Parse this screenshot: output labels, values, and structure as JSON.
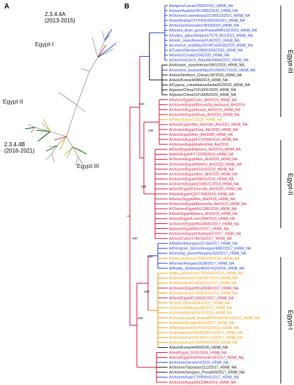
{
  "panels": {
    "a": "A",
    "b": "B"
  },
  "panel_a": {
    "clade_top": {
      "line1": "2.3.4.4A",
      "line2": "(2013-2015)"
    },
    "clade_bottom": {
      "line1": "2.3.4.4B",
      "line2": "(2016-2021)"
    },
    "groups": [
      "Egypt-I",
      "Egypt-II",
      "Egypt-III"
    ]
  },
  "panel_b": {
    "clade_labels": [
      "Egypt-III",
      "Egypt-II",
      "Egypt-I"
    ],
    "bootstrap": [
      "100",
      "100",
      "100",
      "100",
      "100",
      "100",
      "100"
    ],
    "colors": {
      "blue": "#1f3fd6",
      "red": "#d9143a",
      "orange": "#f29a05",
      "black": "#111111"
    },
    "taxa": [
      {
        "t": "A/wigeon/Latvia/23903/2021_H5N8_NA",
        "c": "blue"
      },
      {
        "t": "A/swan/Austria/VIR10852/2021_H5N8_NA",
        "c": "blue"
      },
      {
        "t": "A/chicken/Luxembourg/21166513/2021_H5N8_NA",
        "c": "blue"
      },
      {
        "t": "A/owl/Austria/21TVIR1643310/2021_H5N8_NA",
        "c": "blue"
      },
      {
        "t": "A/chicken/Denmark/14819/2020_H5N8_NA",
        "c": "blue"
      },
      {
        "t": "A/tundra_bean_goose/Poland/MR132/2020_H5N8_NA",
        "c": "blue"
      },
      {
        "t": "A/Gallus_gallus/Belgium/7578_001/2021_H5N8_NA",
        "c": "blue"
      },
      {
        "t": "A/mute_swan/Norway/FU4/2021_H5N8_NA",
        "c": "blue"
      },
      {
        "t": "A/common_teal/Italy/20VIR14391B/2020_H5N8_NA",
        "c": "blue"
      },
      {
        "t": "A/Turkey/Sweden/20KK6303/2020_H5N8_NA",
        "c": "blue"
      },
      {
        "t": "A/turkey/Croatia/104/2020_H5N8_NA",
        "c": "blue"
      },
      {
        "t": "A/chicken/Czech_Republic/6684/2021_H5N8_NA",
        "c": "blue"
      },
      {
        "t": "A/whooper_swan/Henan/SM1/2020_H5N8_NA",
        "c": "black"
      },
      {
        "t": "A/common_buzzard/Italy/21VIR4317/2020_H5N8_NA",
        "c": "blue"
      },
      {
        "t": "A/duck/Northern_China/LSP/2020_H5N8_NA",
        "c": "black"
      },
      {
        "t": "A/duck/Korea/H088/2014_H5N8_NA",
        "c": "black"
      },
      {
        "t": "A/Cygnus_columbianus/Hubei/52/2020_H5N8_NA",
        "c": "black"
      },
      {
        "t": "A/goose/China/21FU001/2020_H5N8_NA",
        "c": "black"
      },
      {
        "t": "A/goose/China/21FU005/2020_H5N8_NA",
        "c": "black"
      },
      {
        "t": "A/turkey/Egypt/Cairo_AH/2019_H5N8_NA",
        "c": "red"
      },
      {
        "t": "A/chicken/Egypt/Elmonufia_backyard_AH/2019",
        "c": "red"
      },
      {
        "t": "A/chicken/Egypt/Assuit_AH/2019_H5N8_NA",
        "c": "red"
      },
      {
        "t": "A/chicken/Egypt/sharq_AH/2020_H5N8_NA",
        "c": "red"
      },
      {
        "t": "A/Pekin/Egypt/1/2020_H5N8_NA",
        "c": "orange"
      },
      {
        "t": "A/duck/Egypt/Alex_Breeder_AH/2021_H5N8_NA",
        "c": "red"
      },
      {
        "t": "A/chicken/Egypt/Giza_AH/2020_H5N8_NA",
        "c": "red"
      },
      {
        "t": "A/duck/Egypt/Alex_AH/2020_H5N8_NA",
        "c": "red"
      },
      {
        "t": "A/chicken/Egypt/F17230A/2019_H5N8_NA",
        "c": "red"
      },
      {
        "t": "A/chicken/Egypt/kafersheik_AH/2019",
        "c": "red"
      },
      {
        "t": "A/Duck/Egypt/Elbehera_AH/2019_H5N8_NA",
        "c": "red"
      },
      {
        "t": "A/duck/Egypt/F17225A/2019_H5N8_NA",
        "c": "red"
      },
      {
        "t": "A/chicken/Egypt/Alex_AH/2020_H5N8_NA",
        "c": "red"
      },
      {
        "t": "A/chicken/Egypt/behera_AH/2020_H5N8_NA",
        "c": "red"
      },
      {
        "t": "A/chicken/Egypt/A1410/2018_H5N8_NA",
        "c": "red"
      },
      {
        "t": "A/chicken/Egypt/Alex_AH/2020_H5N8_NA",
        "c": "red"
      },
      {
        "t": "A/chicken/Egypt/SMG5/2019_H5N8_NA",
        "c": "red"
      },
      {
        "t": "A/chicken/Egypt/Q16807C/2018_H5N8_NA",
        "c": "red"
      },
      {
        "t": "A/duck/Egypt/Elmonufia_AH/2020_H5N8_NA",
        "c": "red"
      },
      {
        "t": "A/duck/Egypt/Q16716A/2018_H5N8_NA",
        "c": "red"
      },
      {
        "t": "A/turkey/Egypt/Alex_AH/2019_H5N8_NA",
        "c": "red"
      },
      {
        "t": "A/chicken/Egypt/Elmonufia_AH/2019_H5N8_NA",
        "c": "red"
      },
      {
        "t": "A/Chicken/Egypt/A12286/2018_H5N8_NA",
        "c": "red"
      },
      {
        "t": "A/duck/Egypt/Behera_AH/2019_H5N8_NA",
        "c": "red"
      },
      {
        "t": "A/duck/Egypt/Luxor/294/2019_H5N8_NA",
        "c": "red"
      },
      {
        "t": "A/chicken/Egypt/M14083D/2017_H5N8_NA",
        "c": "red"
      },
      {
        "t": "A/goose/Egypt/MG2/2017_H5N8_NA",
        "c": "red"
      },
      {
        "t": "A/chicken/Egypt/Gharbiya/1/2017_H5N8_NA",
        "c": "red"
      },
      {
        "t": "A/Duck/Cairo/1785CA/2017_H5N8_NA",
        "c": "red"
      },
      {
        "t": "A/Mallard/Hungary/1574a/2017_H5N8_NA",
        "c": "blue"
      },
      {
        "t": "A/Peregrine_falcon/Hungary/4882/2017_H5N8_NA",
        "c": "blue"
      },
      {
        "t": "A/Greylag_goose/Hungary/320/2017_H5N8_NA",
        "c": "blue"
      },
      {
        "t": "A/wild_bird/Iran/17RS6404/2016_H5N8_NA",
        "c": "orange"
      },
      {
        "t": "A/Goose/Hungary/1038/2017_H5N8_NA",
        "c": "blue"
      },
      {
        "t": "A/Ruddy_Shelduck/AN/21412/2016_H5N8_NA",
        "c": "blue"
      },
      {
        "t": "A/little_grebe/Iran/17RS6540/2016_H5N8_NA",
        "c": "orange"
      },
      {
        "t": "A/chicken/Iran/17RS6457/2017_H5N8_NA",
        "c": "orange"
      },
      {
        "t": "A/chicken/Iran/19VIR202/2017_H5N8_NA",
        "c": "orange"
      },
      {
        "t": "A/chicken/Egypt/N14200B/2017_H5N8_NA",
        "c": "red"
      },
      {
        "t": "A/chicken/Iran/17RS6415/2017_H5N8_NA",
        "c": "orange"
      },
      {
        "t": "A/duck/Egypt/F13663C/2017_H5N8_NA",
        "c": "red"
      },
      {
        "t": "A/chicken/Riyadh/A2/2017_H5N8_NA",
        "c": "orange"
      },
      {
        "t": "A/chicken/AlAhsaa/A8/2017_H5N8_NA",
        "c": "orange"
      },
      {
        "t": "A/chicken/Riyadh/A15/2018_H5N8_NA",
        "c": "orange"
      },
      {
        "t": "A/chicken/Saudi_Arabia/KFU/HKU3616/2017_H5N8_NA",
        "c": "orange"
      },
      {
        "t": "A/chicken/Riyadh/AF19/2017_H5N8_NA",
        "c": "orange"
      },
      {
        "t": "A/flamingo/Iran/17RS6412/2016_H5N8_NA",
        "c": "orange"
      },
      {
        "t": "A/chicken/Iran/18VIR200714/2017_H5N8_NA",
        "c": "orange"
      },
      {
        "t": "A/chicken/Iran/19VIR201715/2017_H5N8_NA",
        "c": "orange"
      },
      {
        "t": "A/chicken/Iran/17RS6405/2016_H5N8_NA",
        "c": "orange"
      },
      {
        "t": "A/duck/Korea/H499/2020_H5N8_NA",
        "c": "black"
      },
      {
        "t": "A/teal/Egypt_923C/2016_H5N8_NA",
        "c": "red"
      },
      {
        "t": "A/duck/Egypt/KafrElsheikh1B/2017_H5N8_NA",
        "c": "red"
      },
      {
        "t": "A/chicken/Ukraine/3/2016_H5N8_NA",
        "c": "blue"
      },
      {
        "t": "A/chicken/Tatarstan/1112/2017_H5N8_NA",
        "c": "black"
      },
      {
        "t": "A/chicken/Sergiyev_Posad/39/2017_H5N8_NA",
        "c": "black"
      },
      {
        "t": "A/chicken/Italy/17VIR9941/2017_H5N8_NA",
        "c": "blue"
      },
      {
        "t": "A/chicken/Egypt/A12084/2019_H5N8_NA",
        "c": "red"
      }
    ]
  }
}
